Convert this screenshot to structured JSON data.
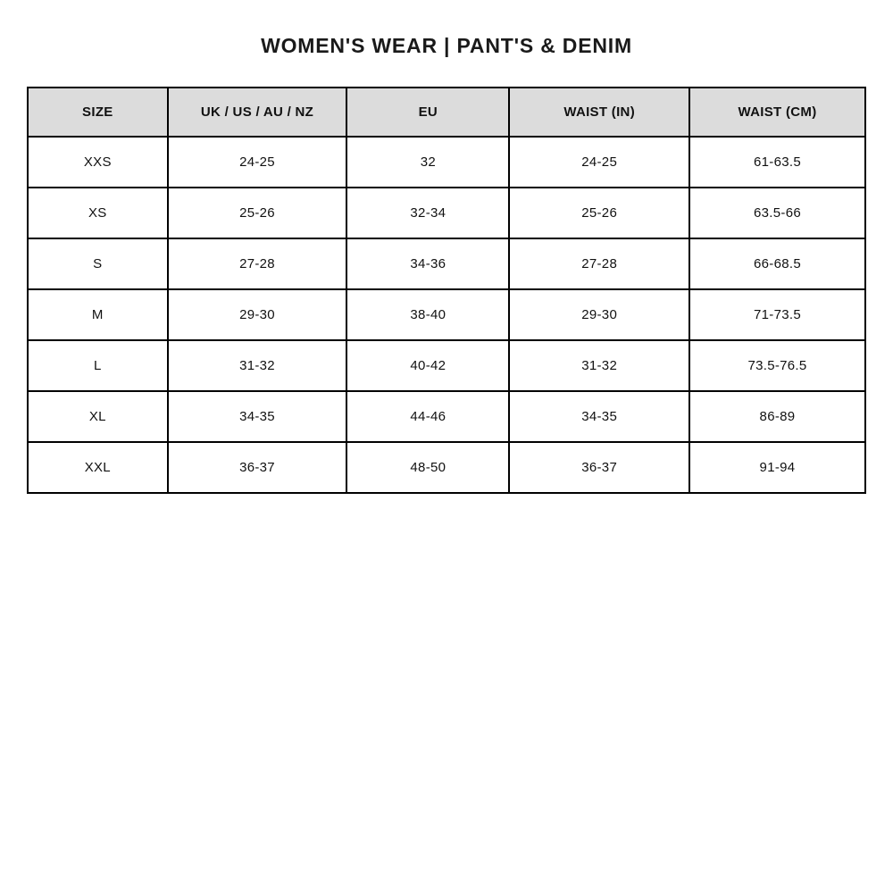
{
  "title": "WOMEN'S WEAR | PANT'S & DENIM",
  "colors": {
    "header_bg": "#dcdcdc",
    "border": "#000000",
    "text": "#111111",
    "page_bg": "#ffffff"
  },
  "table": {
    "columns": [
      "SIZE",
      "UK / US / AU / NZ",
      "EU",
      "WAIST (IN)",
      "WAIST (CM)"
    ],
    "rows": [
      [
        "XXS",
        "24-25",
        "32",
        "24-25",
        "61-63.5"
      ],
      [
        "XS",
        "25-26",
        "32-34",
        "25-26",
        "63.5-66"
      ],
      [
        "S",
        "27-28",
        "34-36",
        "27-28",
        "66-68.5"
      ],
      [
        "M",
        "29-30",
        "38-40",
        "29-30",
        "71-73.5"
      ],
      [
        "L",
        "31-32",
        "40-42",
        "31-32",
        "73.5-76.5"
      ],
      [
        "XL",
        "34-35",
        "44-46",
        "34-35",
        "86-89"
      ],
      [
        "XXL",
        "36-37",
        "48-50",
        "36-37",
        "91-94"
      ]
    ]
  }
}
